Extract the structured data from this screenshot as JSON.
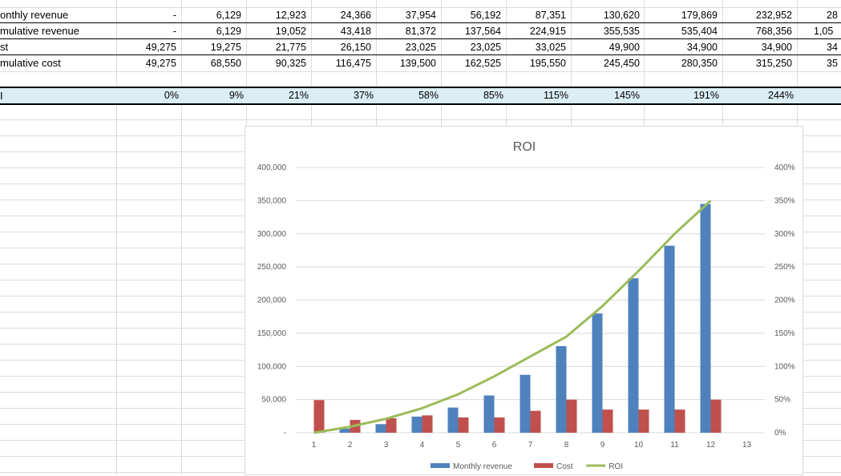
{
  "sheet": {
    "rows": [
      {
        "label": "onthly revenue",
        "values": [
          "-",
          "6,129",
          "12,923",
          "24,366",
          "37,954",
          "56,192",
          "87,351",
          "130,620",
          "179,869",
          "232,952",
          "28"
        ]
      },
      {
        "label": "mulative revenue",
        "values": [
          "-",
          "6,129",
          "19,052",
          "43,418",
          "81,372",
          "137,564",
          "224,915",
          "355,535",
          "535,404",
          "768,356",
          "1,05"
        ]
      },
      {
        "label": "st",
        "values": [
          "49,275",
          "19,275",
          "21,775",
          "26,150",
          "23,025",
          "23,025",
          "33,025",
          "49,900",
          "34,900",
          "34,900",
          "34"
        ]
      },
      {
        "label": "mulative cost",
        "values": [
          "49,275",
          "68,550",
          "90,325",
          "116,475",
          "139,500",
          "162,525",
          "195,550",
          "245,450",
          "280,350",
          "315,250",
          "35"
        ]
      }
    ],
    "roi_row": {
      "label": "I",
      "values": [
        "0%",
        "9%",
        "21%",
        "37%",
        "58%",
        "85%",
        "115%",
        "145%",
        "191%",
        "244%",
        ""
      ]
    }
  },
  "chart_data": {
    "type": "bar",
    "title": "ROI",
    "categories": [
      "1",
      "2",
      "3",
      "4",
      "5",
      "6",
      "7",
      "8",
      "9",
      "10",
      "11",
      "12",
      "13"
    ],
    "series": [
      {
        "name": "Monthly revenue",
        "kind": "bar",
        "axis": "left",
        "color": "#4f81bd",
        "values": [
          0,
          6129,
          12923,
          24366,
          37954,
          56192,
          87351,
          130620,
          179869,
          232952,
          282000,
          345000,
          null
        ]
      },
      {
        "name": "Cost",
        "kind": "bar",
        "axis": "left",
        "color": "#c0504d",
        "values": [
          49275,
          19275,
          21775,
          26150,
          23025,
          23025,
          33025,
          49900,
          34900,
          34900,
          34900,
          49900,
          null
        ]
      },
      {
        "name": "ROI",
        "kind": "line",
        "axis": "right",
        "color": "#9bbb59",
        "values": [
          0,
          9,
          21,
          37,
          58,
          85,
          115,
          145,
          191,
          244,
          300,
          350,
          null
        ]
      }
    ],
    "ylim_left": [
      0,
      400000
    ],
    "yticks_left": [
      "-",
      "50,000",
      "100,000",
      "150,000",
      "200,000",
      "250,000",
      "300,000",
      "350,000",
      "400,000"
    ],
    "ylim_right": [
      0,
      400
    ],
    "yticks_right": [
      "0%",
      "50%",
      "100%",
      "150%",
      "200%",
      "250%",
      "300%",
      "350%",
      "400%"
    ],
    "grid": true,
    "legend": "bottom"
  }
}
